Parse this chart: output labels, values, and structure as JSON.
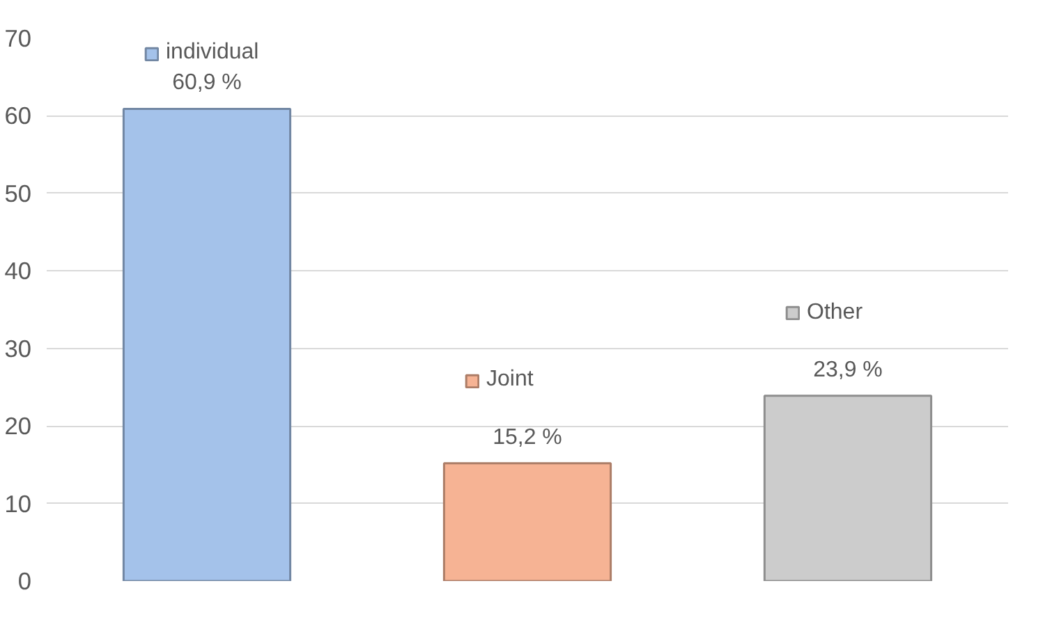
{
  "chart_data": {
    "type": "bar",
    "categories": [
      null,
      null,
      null
    ],
    "series": [
      {
        "name": "individual",
        "color": "#a4c2ea",
        "values": [
          60.9,
          null,
          null
        ],
        "value_labels": [
          "60,9 %",
          null,
          null
        ]
      },
      {
        "name": "Joint",
        "color": "#f6b394",
        "values": [
          null,
          15.2,
          null
        ],
        "value_labels": [
          null,
          "15,2 %",
          null
        ]
      },
      {
        "name": "Other",
        "color": "#cccccc",
        "values": [
          null,
          null,
          23.9
        ],
        "value_labels": [
          null,
          null,
          "23,9 %"
        ]
      }
    ],
    "ylim": [
      0,
      70
    ],
    "yticks": [
      0,
      10,
      20,
      30,
      40,
      50,
      60,
      70
    ],
    "grid": "y",
    "legend": "top"
  }
}
